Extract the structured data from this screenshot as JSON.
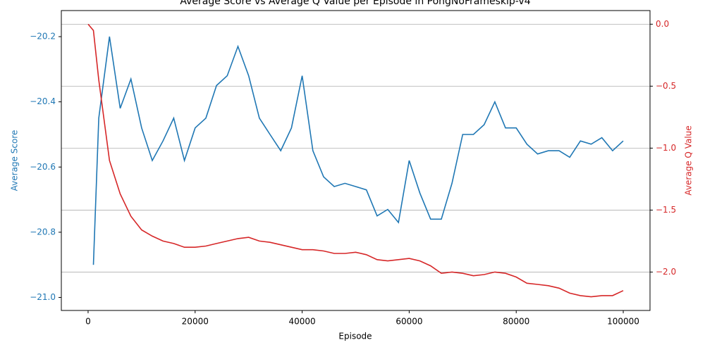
{
  "chart_data": {
    "type": "line",
    "title": "Average Score vs Average Q Value per Episode in PongNoFrameskip-v4",
    "xlabel": "Episode",
    "ylabel": "Average Score",
    "y2label": "Average Q Value",
    "x": [
      0,
      1000,
      2000,
      4000,
      6000,
      8000,
      10000,
      12000,
      14000,
      16000,
      18000,
      20000,
      22000,
      24000,
      26000,
      28000,
      30000,
      32000,
      34000,
      36000,
      38000,
      40000,
      42000,
      44000,
      46000,
      48000,
      50000,
      52000,
      54000,
      56000,
      58000,
      60000,
      62000,
      64000,
      66000,
      68000,
      70000,
      72000,
      74000,
      76000,
      78000,
      80000,
      82000,
      84000,
      86000,
      88000,
      90000,
      92000,
      94000,
      96000,
      98000,
      100000
    ],
    "series": [
      {
        "name": "Average Score",
        "color": "#1f77b4",
        "axis": "y",
        "values": [
          null,
          -20.9,
          -20.45,
          -20.2,
          -20.42,
          -20.33,
          -20.48,
          -20.58,
          -20.52,
          -20.45,
          -20.58,
          -20.48,
          -20.45,
          -20.35,
          -20.32,
          -20.23,
          -20.32,
          -20.45,
          -20.5,
          -20.55,
          -20.48,
          -20.32,
          -20.55,
          -20.63,
          -20.66,
          -20.65,
          -20.66,
          -20.67,
          -20.75,
          -20.73,
          -20.77,
          -20.58,
          -20.68,
          -20.76,
          -20.76,
          -20.65,
          -20.5,
          -20.5,
          -20.47,
          -20.4,
          -20.48,
          -20.48,
          -20.53,
          -20.56,
          -20.55,
          -20.55,
          -20.57,
          -20.52,
          -20.53,
          -20.51,
          -20.55,
          -20.52
        ]
      },
      {
        "name": "Average Q Value",
        "color": "#d62728",
        "axis": "y2",
        "values": [
          0,
          -0.05,
          -0.45,
          -1.1,
          -1.37,
          -1.55,
          -1.66,
          -1.71,
          -1.75,
          -1.77,
          -1.8,
          -1.8,
          -1.79,
          -1.77,
          -1.75,
          -1.73,
          -1.72,
          -1.75,
          -1.76,
          -1.78,
          -1.8,
          -1.82,
          -1.82,
          -1.83,
          -1.85,
          -1.85,
          -1.84,
          -1.86,
          -1.9,
          -1.91,
          -1.9,
          -1.89,
          -1.91,
          -1.95,
          -2.01,
          -2.0,
          -2.01,
          -2.03,
          -2.02,
          -2.0,
          -2.01,
          -2.04,
          -2.09,
          -2.1,
          -2.11,
          -2.13,
          -2.17,
          -2.19,
          -2.2,
          -2.19,
          -2.19,
          -2.15
        ]
      }
    ],
    "xlim": [
      -5000,
      105000
    ],
    "xticks": [
      0,
      20000,
      40000,
      60000,
      80000,
      100000
    ],
    "ylim": [
      -21.04,
      -20.12
    ],
    "yticks": [
      {
        "value": -21.0,
        "label": "−21.0"
      },
      {
        "value": -20.8,
        "label": "−20.8"
      },
      {
        "value": -20.6,
        "label": "−20.6"
      },
      {
        "value": -20.4,
        "label": "−20.4"
      },
      {
        "value": -20.2,
        "label": "−20.2"
      }
    ],
    "y2lim": [
      -2.31,
      0.11
    ],
    "y2ticks": [
      {
        "value": -2.0,
        "label": "−2.0"
      },
      {
        "value": -1.5,
        "label": "−1.5"
      },
      {
        "value": -1.0,
        "label": "−1.0"
      },
      {
        "value": -0.5,
        "label": "−0.5"
      },
      {
        "value": 0,
        "label": "0.0"
      }
    ],
    "grid": "y2"
  }
}
